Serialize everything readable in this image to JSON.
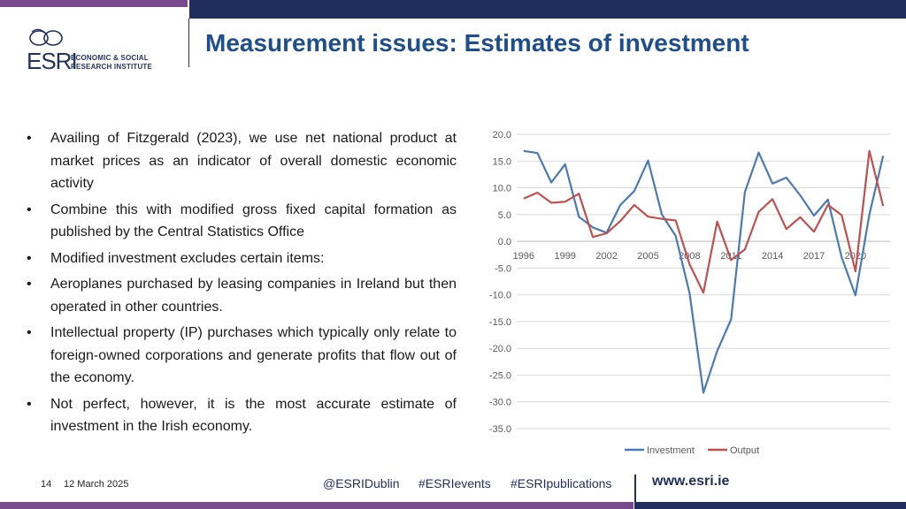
{
  "header": {
    "logo": {
      "esri": "ESRI",
      "line1": "ECONOMIC & SOCIAL",
      "line2": "RESEARCH INSTITUTE"
    },
    "title": "Measurement issues: Estimates of investment"
  },
  "bullets": [
    "Availing of Fitzgerald (2023), we use net national product at market prices as an indicator of overall domestic economic activity",
    "Combine this with modified gross fixed capital formation as published by the Central Statistics Office",
    "Modified investment excludes certain items:",
    "Aeroplanes purchased by leasing companies in Ireland but then operated in other countries.",
    "Intellectual property (IP) purchases which typically only relate to foreign-owned corporations and generate profits that flow out of the economy.",
    "Not perfect, however, it is the most accurate estimate of investment in the Irish economy."
  ],
  "bullet_glyph": "•",
  "chart_data": {
    "type": "line",
    "title": "",
    "xlabel": "",
    "ylabel": "",
    "x": [
      1996,
      1997,
      1998,
      1999,
      2000,
      2001,
      2002,
      2003,
      2004,
      2005,
      2006,
      2007,
      2008,
      2009,
      2010,
      2011,
      2012,
      2013,
      2014,
      2015,
      2016,
      2017,
      2018,
      2019,
      2020,
      2021,
      2022
    ],
    "xtick_labels": [
      "1996",
      "1999",
      "2002",
      "2005",
      "2008",
      "2011",
      "2014",
      "2017",
      "2020"
    ],
    "ytick_labels": [
      "20.0",
      "15.0",
      "10.0",
      "5.0",
      "0.0",
      "-5.0",
      "-10.0",
      "-15.0",
      "-20.0",
      "-25.0",
      "-30.0",
      "-35.0"
    ],
    "ylim": [
      -35,
      20
    ],
    "grid": true,
    "legend_position": "bottom",
    "series": [
      {
        "name": "Investment",
        "color": "#4a7ab5",
        "values": [
          16.9,
          16.5,
          11.0,
          14.4,
          4.6,
          2.6,
          1.6,
          6.8,
          9.4,
          15.1,
          5.0,
          1.0,
          -9.7,
          -28.3,
          -20.5,
          -14.6,
          9.2,
          16.6,
          10.8,
          11.9,
          8.6,
          4.8,
          7.8,
          -3.0,
          -10.1,
          5.0,
          16.0
        ]
      },
      {
        "name": "Output",
        "color": "#c0504d",
        "values": [
          8.0,
          9.1,
          7.2,
          7.4,
          8.9,
          0.8,
          1.5,
          3.8,
          6.8,
          4.6,
          4.2,
          3.9,
          -4.3,
          -9.6,
          3.7,
          -3.5,
          -1.5,
          5.5,
          7.9,
          2.3,
          4.5,
          1.8,
          6.8,
          4.9,
          -5.6,
          16.9,
          6.6
        ]
      }
    ]
  },
  "footer": {
    "slide_number": "14",
    "date": "12 March 2025",
    "twitter": "@ESRIDublin",
    "events": "#ESRIevents",
    "publications": "#ESRIpublications",
    "website": "www.esri.ie"
  }
}
